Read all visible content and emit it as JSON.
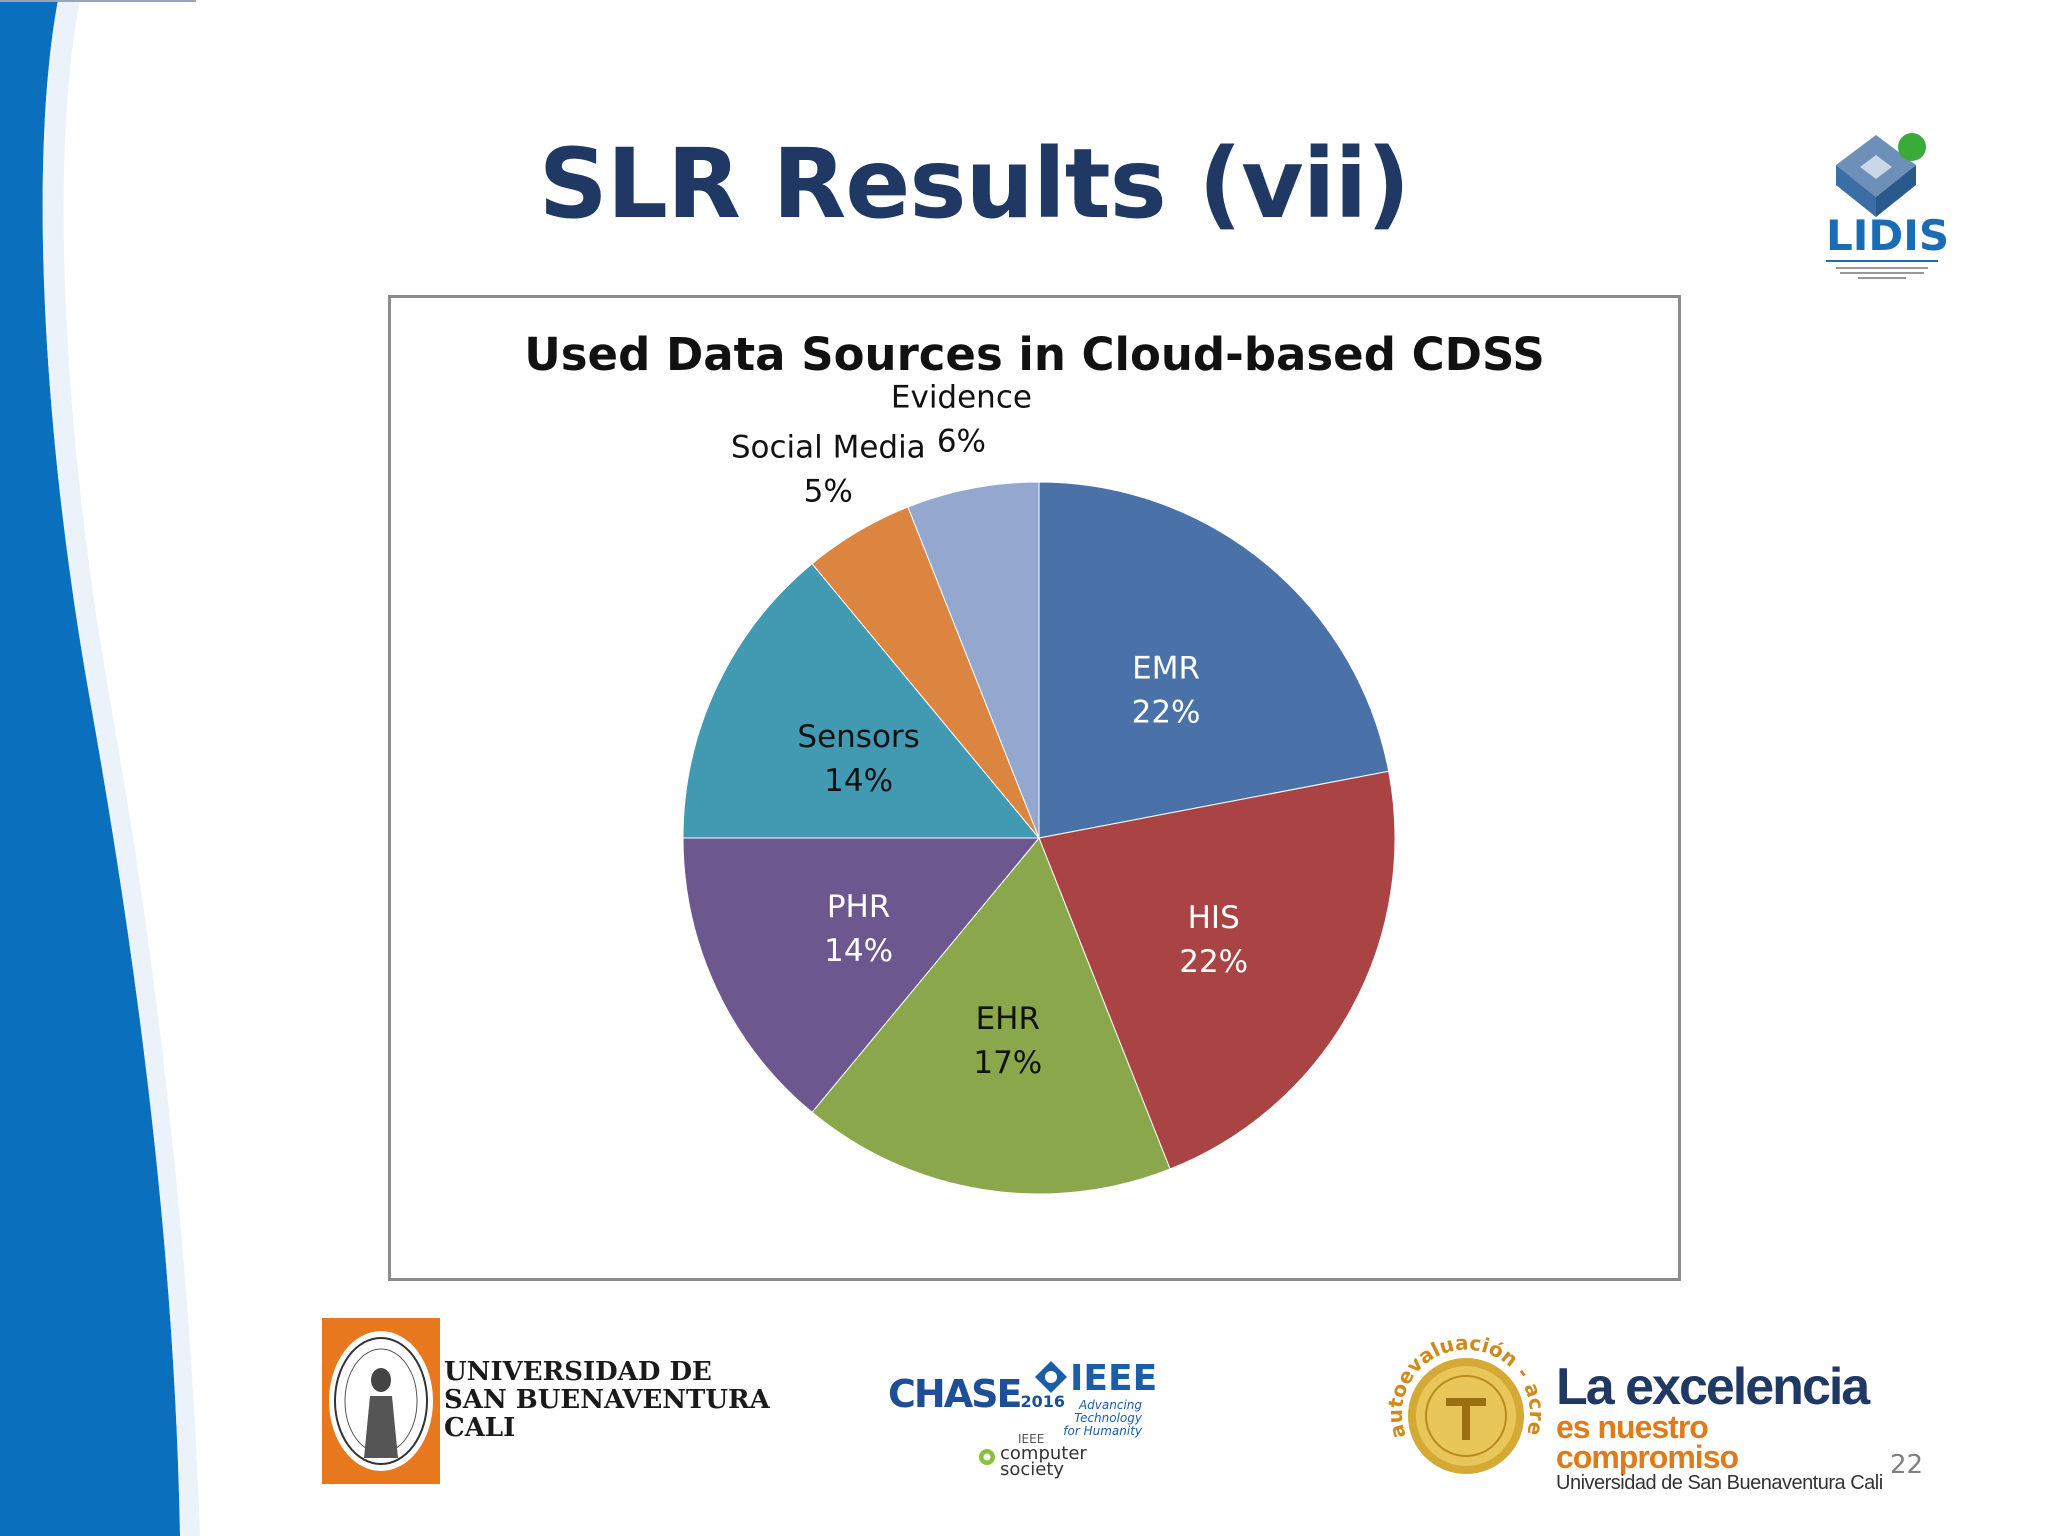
{
  "slide": {
    "title": "SLR Results (vii)",
    "number": "22"
  },
  "chart_data": {
    "type": "pie",
    "title": "Used Data Sources in Cloud-based CDSS",
    "slices": [
      {
        "label": "EMR",
        "value": 22,
        "value_label": "22%",
        "color": "#4a72a8",
        "text_color": "#ffffff"
      },
      {
        "label": "HIS",
        "value": 22,
        "value_label": "22%",
        "color": "#aa4444",
        "text_color": "#ffffff"
      },
      {
        "label": "EHR",
        "value": 17,
        "value_label": "17%",
        "color": "#8aa84b",
        "text_color": "#111111"
      },
      {
        "label": "PHR",
        "value": 14,
        "value_label": "14%",
        "color": "#6c578f",
        "text_color": "#ffffff"
      },
      {
        "label": "Sensors",
        "value": 14,
        "value_label": "14%",
        "color": "#4299b2",
        "text_color": "#111111"
      },
      {
        "label": "Social Media",
        "value": 5,
        "value_label": "5%",
        "color": "#db8540",
        "text_color": "#111111"
      },
      {
        "label": "Evidence",
        "value": 6,
        "value_label": "6%",
        "color": "#94a7cf",
        "text_color": "#111111"
      }
    ],
    "start": "top",
    "direction": "clockwise",
    "legend": "none"
  },
  "logos": {
    "lidis": {
      "text": "LIDIS",
      "subtitle": "LABORATORIO DE INVESTIGACIÓN PARA EL DESARROLLO DE INGENIERÍA DE SOFTWARE"
    },
    "university": {
      "name": "UNIVERSIDAD DE\nSAN BUENAVENTURA\nCALI"
    },
    "chase": {
      "text": "CHASE",
      "year": "2016"
    },
    "ieee": {
      "text": "IEEE",
      "tagline": "Advancing Technology\nfor Humanity"
    },
    "computer_society": {
      "ieee": "IEEE",
      "text": "computer\n     society"
    },
    "accreditation": {
      "text": "autoevaluación - acreditación"
    },
    "motto": {
      "line1": "La excelencia",
      "line2": "es nuestro compromiso",
      "line3": "Universidad de San Buenaventura Cali"
    }
  }
}
